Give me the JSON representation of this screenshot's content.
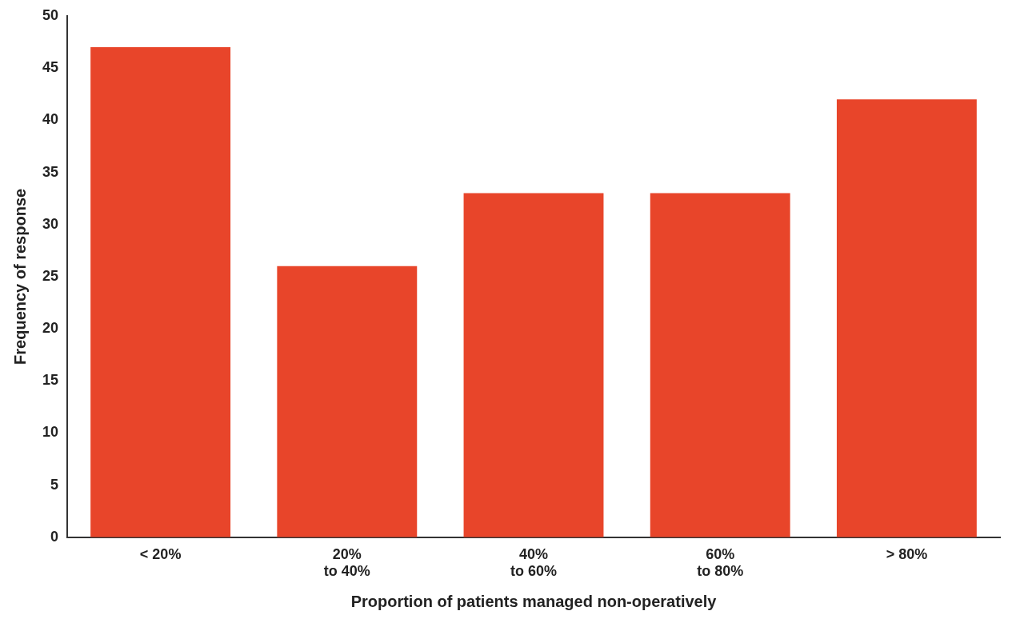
{
  "chart_data": {
    "type": "bar",
    "categories": [
      "< 20%",
      "20%\nto 40%",
      "40%\nto 60%",
      "60%\nto 80%",
      "> 80%"
    ],
    "values": [
      47,
      26,
      33,
      33,
      42
    ],
    "color": "#E8452A",
    "xlabel": "Proportion of patients managed non-operatively",
    "ylabel": "Frequency of response",
    "ylim": [
      0,
      50
    ],
    "yticks": [
      0,
      5,
      10,
      15,
      20,
      25,
      30,
      35,
      40,
      45,
      50
    ],
    "grid": false
  }
}
